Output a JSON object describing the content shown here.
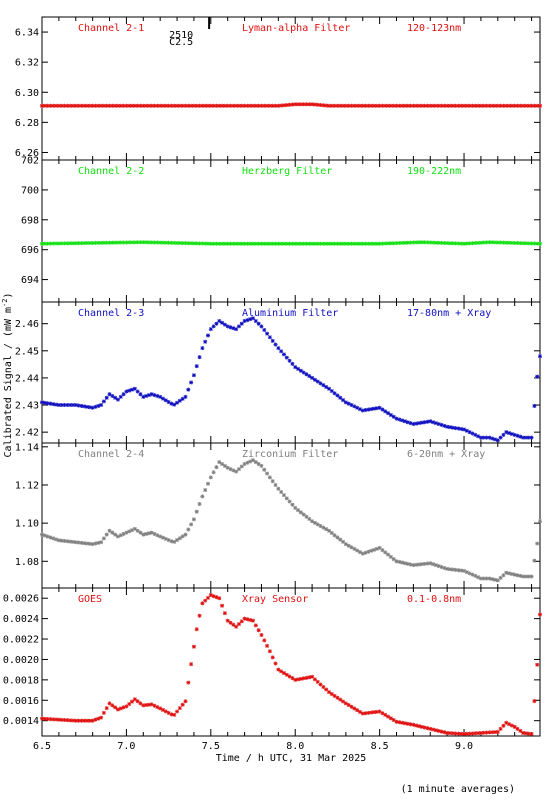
{
  "figure": {
    "ylabel_main": "Calibrated Signal / (mW m",
    "ylabel_sup": "-2",
    "ylabel_close": ")",
    "xlabel": "Time / h UTC, 31 Mar 2025",
    "footnote": "(1 minute averages)",
    "event_label_1": "2510",
    "event_label_2": "C2.5"
  },
  "chart_data": [
    {
      "type": "scatter",
      "channel": "Channel 2-1",
      "filter": "Lyman-alpha Filter",
      "band": "120-123nm",
      "color": "#e01010",
      "xlim": [
        6.5,
        9.45
      ],
      "ylim": [
        6.255,
        6.35
      ],
      "yticks": [
        6.26,
        6.28,
        6.3,
        6.32,
        6.34
      ],
      "ytick_labels": [
        "6.26",
        "6.28",
        "6.30",
        "6.32",
        "6.34"
      ],
      "x": [
        6.5,
        7.0,
        7.5,
        7.9,
        8.0,
        8.1,
        8.2,
        8.5,
        9.0,
        9.45
      ],
      "values": [
        6.291,
        6.291,
        6.291,
        6.291,
        6.292,
        6.292,
        6.291,
        6.291,
        6.291,
        6.291
      ]
    },
    {
      "type": "scatter",
      "channel": "Channel 2-2",
      "filter": "Herzberg Filter",
      "band": "190-222nm",
      "color": "#10e010",
      "xlim": [
        6.5,
        9.45
      ],
      "ylim": [
        692.5,
        702
      ],
      "yticks": [
        694,
        696,
        698,
        700,
        702
      ],
      "ytick_labels": [
        "694",
        "696",
        "698",
        "700",
        "702"
      ],
      "x": [
        6.5,
        7.1,
        7.5,
        8.0,
        8.5,
        8.75,
        9.0,
        9.15,
        9.45
      ],
      "values": [
        696.4,
        696.5,
        696.4,
        696.4,
        696.4,
        696.5,
        696.4,
        696.5,
        696.4
      ]
    },
    {
      "type": "scatter",
      "channel": "Channel 2-3",
      "filter": "Aluminium Filter",
      "band": "17-80nm + Xray",
      "color": "#1010c0",
      "xlim": [
        6.5,
        9.45
      ],
      "ylim": [
        2.416,
        2.468
      ],
      "yticks": [
        2.42,
        2.43,
        2.44,
        2.45,
        2.46
      ],
      "ytick_labels": [
        "2.42",
        "2.43",
        "2.44",
        "2.45",
        "2.46"
      ],
      "x": [
        6.5,
        6.6,
        6.7,
        6.8,
        6.85,
        6.9,
        6.95,
        7.0,
        7.05,
        7.1,
        7.15,
        7.2,
        7.28,
        7.35,
        7.4,
        7.45,
        7.5,
        7.55,
        7.6,
        7.65,
        7.7,
        7.75,
        7.8,
        7.85,
        7.9,
        8.0,
        8.1,
        8.2,
        8.3,
        8.4,
        8.5,
        8.6,
        8.7,
        8.8,
        8.9,
        9.0,
        9.1,
        9.15,
        9.2,
        9.25,
        9.3,
        9.35,
        9.4,
        9.43,
        9.45
      ],
      "values": [
        2.431,
        2.43,
        2.43,
        2.429,
        2.43,
        2.434,
        2.432,
        2.435,
        2.436,
        2.433,
        2.434,
        2.433,
        2.43,
        2.433,
        2.441,
        2.451,
        2.458,
        2.461,
        2.459,
        2.458,
        2.461,
        2.462,
        2.459,
        2.455,
        2.451,
        2.444,
        2.44,
        2.436,
        2.431,
        2.428,
        2.429,
        2.425,
        2.423,
        2.424,
        2.422,
        2.421,
        2.418,
        2.418,
        2.417,
        2.42,
        2.419,
        2.418,
        2.418,
        2.439,
        2.448
      ]
    },
    {
      "type": "scatter",
      "channel": "Channel 2-4",
      "filter": "Zirconium Filter",
      "band": "6-20nm + Xray",
      "color": "#808080",
      "xlim": [
        6.5,
        9.45
      ],
      "ylim": [
        1.066,
        1.142
      ],
      "yticks": [
        1.08,
        1.1,
        1.12,
        1.14
      ],
      "ytick_labels": [
        "1.08",
        "1.10",
        "1.12",
        "1.14"
      ],
      "x": [
        6.5,
        6.6,
        6.7,
        6.8,
        6.85,
        6.9,
        6.95,
        7.0,
        7.05,
        7.1,
        7.15,
        7.2,
        7.28,
        7.35,
        7.4,
        7.45,
        7.5,
        7.55,
        7.6,
        7.65,
        7.7,
        7.75,
        7.8,
        7.85,
        7.9,
        8.0,
        8.1,
        8.2,
        8.3,
        8.4,
        8.5,
        8.6,
        8.7,
        8.8,
        8.9,
        9.0,
        9.1,
        9.15,
        9.2,
        9.25,
        9.3,
        9.35,
        9.4,
        9.43,
        9.45
      ],
      "values": [
        1.094,
        1.091,
        1.09,
        1.089,
        1.09,
        1.096,
        1.093,
        1.095,
        1.097,
        1.094,
        1.095,
        1.093,
        1.09,
        1.094,
        1.102,
        1.114,
        1.124,
        1.132,
        1.129,
        1.127,
        1.131,
        1.133,
        1.13,
        1.124,
        1.118,
        1.108,
        1.101,
        1.096,
        1.089,
        1.084,
        1.087,
        1.08,
        1.078,
        1.079,
        1.076,
        1.075,
        1.071,
        1.071,
        1.07,
        1.074,
        1.073,
        1.072,
        1.072,
        1.087,
        1.101
      ]
    },
    {
      "type": "scatter",
      "channel": "GOES",
      "filter": "Xray Sensor",
      "band": "0.1-0.8nm",
      "color": "#e01010",
      "xlim": [
        6.5,
        9.45
      ],
      "ylim": [
        0.00125,
        0.0027
      ],
      "yticks": [
        0.0014,
        0.0016,
        0.0018,
        0.002,
        0.0022,
        0.0024,
        0.0026
      ],
      "ytick_labels": [
        "0.0014",
        "0.0016",
        "0.0018",
        "0.0020",
        "0.0022",
        "0.0024",
        "0.0026"
      ],
      "x": [
        6.5,
        6.6,
        6.7,
        6.8,
        6.85,
        6.9,
        6.95,
        7.0,
        7.05,
        7.1,
        7.15,
        7.2,
        7.28,
        7.35,
        7.38,
        7.42,
        7.45,
        7.5,
        7.55,
        7.6,
        7.65,
        7.7,
        7.75,
        7.8,
        7.85,
        7.9,
        8.0,
        8.1,
        8.2,
        8.3,
        8.4,
        8.5,
        8.6,
        8.7,
        8.8,
        8.9,
        9.0,
        9.1,
        9.2,
        9.25,
        9.3,
        9.35,
        9.4,
        9.43,
        9.45
      ],
      "values": [
        0.00142,
        0.00141,
        0.0014,
        0.0014,
        0.00143,
        0.00157,
        0.00151,
        0.00154,
        0.00161,
        0.00155,
        0.00156,
        0.00152,
        0.00145,
        0.00159,
        0.00192,
        0.00233,
        0.00255,
        0.00263,
        0.0026,
        0.00238,
        0.00232,
        0.0024,
        0.00238,
        0.00224,
        0.00208,
        0.0019,
        0.0018,
        0.00183,
        0.00168,
        0.00157,
        0.00147,
        0.00149,
        0.00139,
        0.00136,
        0.00132,
        0.00128,
        0.00127,
        0.00128,
        0.00129,
        0.00138,
        0.00134,
        0.00128,
        0.00127,
        0.00185,
        0.00244
      ]
    }
  ],
  "xaxis": {
    "ticks": [
      6.5,
      7.0,
      7.5,
      8.0,
      8.5,
      9.0
    ],
    "tick_labels": [
      "6.5",
      "7.0",
      "7.5",
      "8.0",
      "8.5",
      "9.0"
    ],
    "minor_step": 0.1
  },
  "event_marker_x": 7.49
}
